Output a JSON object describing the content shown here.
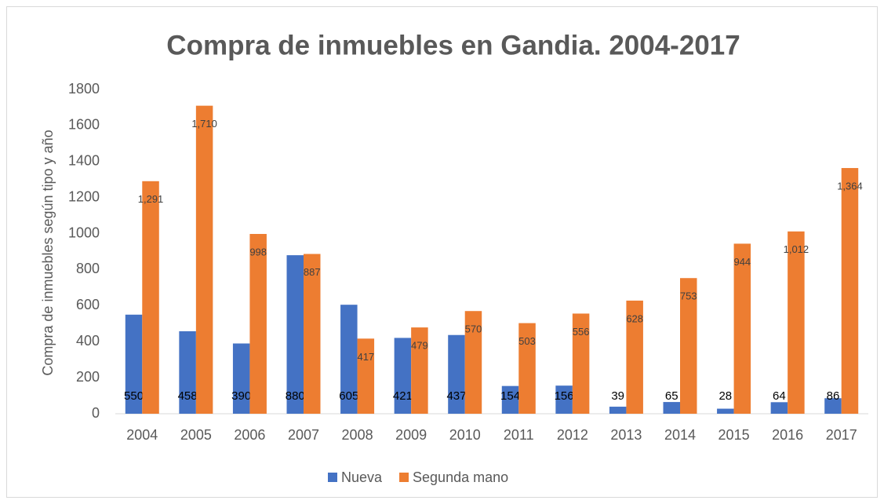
{
  "chart_data": {
    "type": "bar",
    "title": "Compra de inmuebles en Gandia. 2004-2017",
    "y_label": "Compra de inmuebles según tipo y año",
    "categories": [
      "2004",
      "2005",
      "2006",
      "2007",
      "2008",
      "2009",
      "2010",
      "2011",
      "2012",
      "2013",
      "2014",
      "2015",
      "2016",
      "2017"
    ],
    "series": [
      {
        "name": "Nueva",
        "color": "#4472c4",
        "values": [
          550,
          458,
          390,
          880,
          605,
          421,
          437,
          154,
          156,
          39,
          65,
          28,
          64,
          86
        ]
      },
      {
        "name": "Segunda mano",
        "color": "#ed7d31",
        "values": [
          1291,
          1710,
          998,
          887,
          417,
          479,
          570,
          503,
          556,
          628,
          753,
          944,
          1012,
          1364
        ],
        "value_labels": [
          "1,291",
          "1,710",
          "998",
          "887",
          "417",
          "479",
          "570",
          "503",
          "556",
          "628",
          "753",
          "944",
          "1,012",
          "1,364"
        ]
      }
    ],
    "ylim": [
      0,
      1800
    ],
    "yticks": [
      0,
      200,
      400,
      600,
      800,
      1000,
      1200,
      1400,
      1600,
      1800
    ],
    "grid": false,
    "legend": "bottom"
  }
}
